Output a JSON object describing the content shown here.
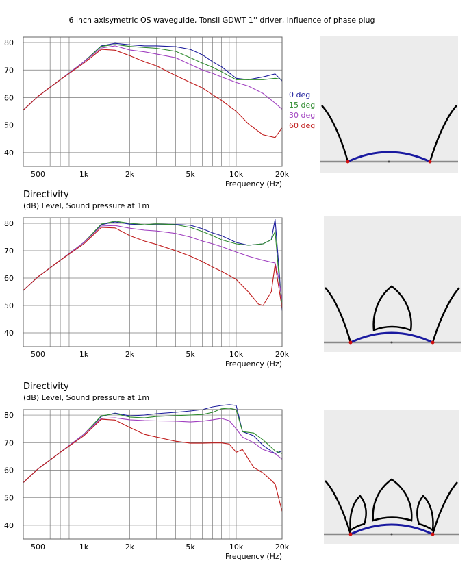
{
  "title": "6 inch axisymetric OS waveguide, Tonsil GDWT 1'' driver, influence of phase plug",
  "colors": {
    "0 deg": "#1c1c9c",
    "15 deg": "#2e8b2e",
    "30 deg": "#a040c0",
    "60 deg": "#c01c1c",
    "grid": "#7a7a7a",
    "baffle": "#888888",
    "profile": "#000000",
    "dome": "#1a1aa0",
    "panel_bg": "#ececec"
  },
  "chart_data": [
    {
      "type": "line",
      "subtitle": "",
      "units_label": "",
      "xlabel": "Frequency  (Hz)",
      "x_scale": "log",
      "xlim": [
        400,
        20000
      ],
      "ylim": [
        35,
        82
      ],
      "x_ticks": [
        500,
        1000,
        2000,
        5000,
        10000,
        20000
      ],
      "x_tick_labels": [
        "500",
        "1k",
        "2k",
        "5k",
        "10k",
        "20k"
      ],
      "y_ticks": [
        40,
        50,
        60,
        70,
        80
      ],
      "y_tick_labels": [
        "40",
        "50",
        "60",
        "70",
        "80"
      ],
      "grid": true,
      "legend_position": "right",
      "series": [
        {
          "name": "0 deg",
          "x": [
            400,
            500,
            700,
            1000,
            1300,
            1600,
            2000,
            2500,
            3000,
            4000,
            5000,
            6000,
            7000,
            8000,
            10000,
            12000,
            15000,
            18000,
            20000
          ],
          "y": [
            55.5,
            60.5,
            66.5,
            73,
            78.8,
            79.7,
            79.2,
            78.8,
            78.8,
            78.5,
            77.5,
            75.5,
            73,
            71.2,
            67,
            66.5,
            67.5,
            68.6,
            66
          ]
        },
        {
          "name": "15 deg",
          "x": [
            400,
            500,
            700,
            1000,
            1300,
            1600,
            2000,
            2500,
            3000,
            4000,
            5000,
            6000,
            7000,
            8000,
            10000,
            12000,
            15000,
            18000,
            20000
          ],
          "y": [
            55.5,
            60.5,
            66.5,
            73,
            78.6,
            79.3,
            78.6,
            78.2,
            77.9,
            76.8,
            74.5,
            72.5,
            71,
            69.4,
            66.5,
            66.5,
            66.5,
            67,
            66.6
          ]
        },
        {
          "name": "30 deg",
          "x": [
            400,
            500,
            700,
            1000,
            1300,
            1600,
            2000,
            2500,
            3000,
            4000,
            5000,
            6000,
            7000,
            8000,
            10000,
            12000,
            15000,
            18000,
            20000
          ],
          "y": [
            55.5,
            60.5,
            66.5,
            73,
            78,
            78.8,
            77.3,
            76.6,
            75.8,
            74.5,
            72,
            70,
            68.8,
            67.5,
            65.5,
            64.2,
            61.5,
            58,
            55.8
          ]
        },
        {
          "name": "60 deg",
          "x": [
            400,
            500,
            700,
            1000,
            1300,
            1600,
            2000,
            2500,
            3000,
            4000,
            5000,
            6000,
            7000,
            8000,
            10000,
            12000,
            15000,
            18000,
            20000
          ],
          "y": [
            55.5,
            60.5,
            66.5,
            72.5,
            77.5,
            77.2,
            75.2,
            73,
            71.5,
            68,
            65.5,
            63.5,
            61,
            59,
            55,
            50.5,
            46.5,
            45.5,
            49
          ]
        }
      ]
    },
    {
      "type": "line",
      "subtitle": "Directivity",
      "units_label": "(dB)  Level, Sound pressure at 1m",
      "xlabel": "Frequency  (Hz)",
      "x_scale": "log",
      "xlim": [
        400,
        20000
      ],
      "ylim": [
        35,
        82
      ],
      "x_ticks": [
        500,
        1000,
        2000,
        5000,
        10000,
        20000
      ],
      "x_tick_labels": [
        "500",
        "1k",
        "2k",
        "5k",
        "10k",
        "20k"
      ],
      "y_ticks": [
        40,
        50,
        60,
        70,
        80
      ],
      "y_tick_labels": [
        "40",
        "50",
        "60",
        "70",
        "80"
      ],
      "grid": true,
      "legend_position": "none",
      "series": [
        {
          "name": "0 deg",
          "x": [
            400,
            500,
            700,
            1000,
            1300,
            1600,
            2000,
            2500,
            3000,
            4000,
            5000,
            6000,
            7000,
            8000,
            10000,
            12000,
            15000,
            17000,
            18000,
            19000,
            20000
          ],
          "y": [
            55.5,
            60.5,
            66.5,
            73,
            79.5,
            80.5,
            79.7,
            79.5,
            79.7,
            79.6,
            79.3,
            78,
            76.5,
            75.5,
            73,
            72,
            72.5,
            74,
            81.5,
            65,
            48
          ]
        },
        {
          "name": "15 deg",
          "x": [
            400,
            500,
            700,
            1000,
            1300,
            1600,
            2000,
            2500,
            3000,
            4000,
            5000,
            6000,
            7000,
            8000,
            10000,
            12000,
            15000,
            17000,
            18000,
            19000,
            20000
          ],
          "y": [
            55.5,
            60.5,
            66.5,
            73,
            79.7,
            80.8,
            80,
            79.5,
            79.8,
            79.5,
            78.5,
            77,
            75.5,
            74,
            72.5,
            72,
            72.5,
            74,
            77,
            62,
            50
          ]
        },
        {
          "name": "30 deg",
          "x": [
            400,
            500,
            700,
            1000,
            1300,
            1600,
            2000,
            2500,
            3000,
            4000,
            5000,
            6000,
            7000,
            8000,
            10000,
            12000,
            15000,
            17000,
            18000,
            19000,
            20000
          ],
          "y": [
            55.5,
            60.5,
            66.5,
            73,
            79,
            79.2,
            78.2,
            77.5,
            77.2,
            76.3,
            75,
            73.5,
            72.5,
            71.5,
            69.5,
            68,
            66.5,
            65.8,
            65.5,
            60,
            52
          ]
        },
        {
          "name": "60 deg",
          "x": [
            400,
            500,
            700,
            1000,
            1300,
            1600,
            2000,
            2500,
            3000,
            4000,
            5000,
            6000,
            7000,
            8000,
            10000,
            12000,
            14000,
            15000,
            17000,
            18000,
            19000,
            20000
          ],
          "y": [
            55.5,
            60.5,
            66.5,
            72.5,
            78.5,
            78.3,
            75.5,
            73.5,
            72.3,
            70,
            68,
            66,
            64,
            62.5,
            59.5,
            55,
            50.5,
            50,
            55,
            65,
            57,
            49
          ]
        }
      ]
    },
    {
      "type": "line",
      "subtitle": "Directivity",
      "units_label": "(dB)  Level, Sound pressure at 1m",
      "xlabel": "Frequency  (Hz)",
      "x_scale": "log",
      "xlim": [
        400,
        20000
      ],
      "ylim": [
        35,
        82
      ],
      "x_ticks": [
        500,
        1000,
        2000,
        5000,
        10000,
        20000
      ],
      "x_tick_labels": [
        "500",
        "1k",
        "2k",
        "5k",
        "10k",
        "20k"
      ],
      "y_ticks": [
        40,
        50,
        60,
        70,
        80
      ],
      "y_tick_labels": [
        "40",
        "50",
        "60",
        "70",
        "80"
      ],
      "grid": true,
      "legend_position": "none",
      "series": [
        {
          "name": "0 deg",
          "x": [
            400,
            500,
            700,
            1000,
            1300,
            1600,
            2000,
            2500,
            3000,
            4000,
            5000,
            6000,
            7000,
            8000,
            9000,
            10000,
            11000,
            13000,
            15000,
            18000,
            20000
          ],
          "y": [
            55.5,
            60.5,
            66.5,
            73,
            79.5,
            80.7,
            79.7,
            80,
            80.5,
            81,
            81.5,
            82,
            83,
            83.5,
            83.8,
            83.5,
            74,
            72.5,
            69,
            66,
            67
          ]
        },
        {
          "name": "15 deg",
          "x": [
            400,
            500,
            700,
            1000,
            1300,
            1600,
            2000,
            2500,
            3000,
            4000,
            5000,
            6000,
            7000,
            8000,
            9000,
            10000,
            11000,
            13000,
            15000,
            18000,
            20000
          ],
          "y": [
            55.5,
            60.5,
            66.5,
            73,
            79.7,
            80.5,
            79.3,
            79,
            79.5,
            79.8,
            80,
            80.2,
            81,
            82.3,
            82.5,
            82,
            74,
            73.5,
            71,
            67,
            66
          ]
        },
        {
          "name": "30 deg",
          "x": [
            400,
            500,
            700,
            1000,
            1300,
            1600,
            2000,
            2500,
            3000,
            4000,
            5000,
            6000,
            7000,
            8000,
            9000,
            10000,
            11000,
            13000,
            15000,
            18000,
            20000
          ],
          "y": [
            55.5,
            60.5,
            66.5,
            73,
            78.8,
            79,
            78.3,
            78,
            77.9,
            77.8,
            77.5,
            77.8,
            78.3,
            78.8,
            78,
            75,
            72,
            70,
            67.5,
            66,
            64
          ]
        },
        {
          "name": "60 deg",
          "x": [
            400,
            500,
            700,
            1000,
            1300,
            1600,
            2000,
            2500,
            3000,
            4000,
            5000,
            6000,
            7000,
            8000,
            9000,
            10000,
            11000,
            13000,
            15000,
            18000,
            20000
          ],
          "y": [
            55.5,
            60.5,
            66.5,
            72.5,
            78.5,
            78.2,
            75.5,
            73,
            72,
            70.5,
            69.8,
            69.8,
            69.9,
            69.9,
            69.5,
            66.5,
            67.5,
            61,
            59,
            55,
            45
          ]
        }
      ]
    }
  ],
  "diagrams": [
    {
      "name": "waveguide without phase plug",
      "plug_count": 0
    },
    {
      "name": "waveguide with single phase plug",
      "plug_count": 1
    },
    {
      "name": "waveguide with triple phase plug",
      "plug_count": 3
    }
  ]
}
